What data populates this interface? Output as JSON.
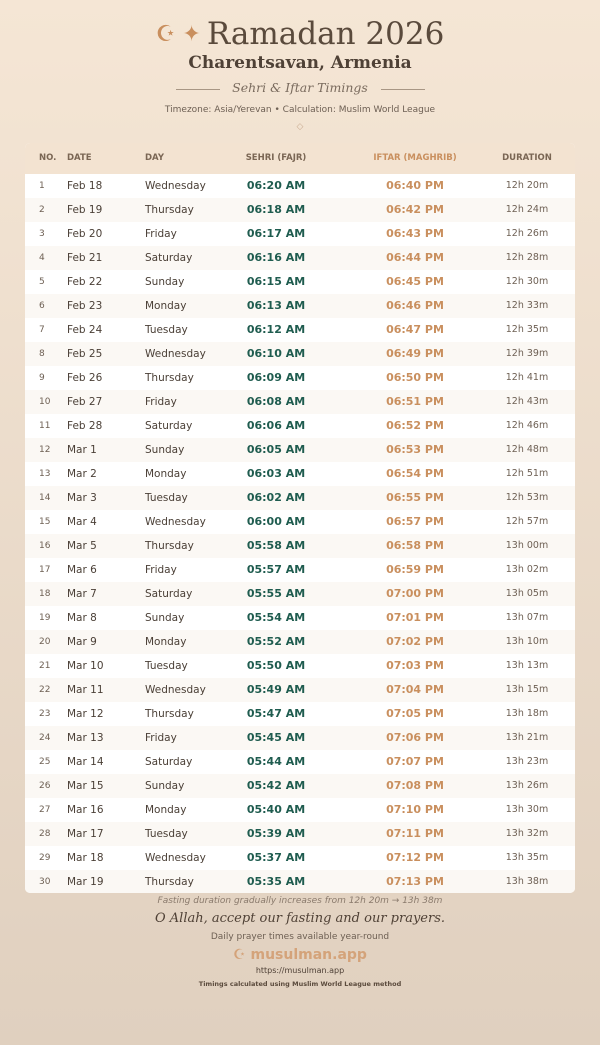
{
  "header": {
    "title": "Ramadan 2026",
    "icons": "☪ ✦",
    "city": "Charentsavan, Armenia",
    "subtitle": "Sehri & Iftar Timings",
    "info": "Timezone: Asia/Yerevan • Calculation: Muslim World League",
    "ornament": "◇"
  },
  "colors": {
    "sehri": "#1f5c4f",
    "iftar": "#c98f5e"
  },
  "table": {
    "headers": [
      "NO.",
      "DATE",
      "DAY",
      "SEHRI (FAJR)",
      "IFTAR (MAGHRIB)",
      "DURATION"
    ],
    "rows": [
      [
        "1",
        "Feb 18",
        "Wednesday",
        "06:20 AM",
        "06:40 PM",
        "12h 20m"
      ],
      [
        "2",
        "Feb 19",
        "Thursday",
        "06:18 AM",
        "06:42 PM",
        "12h 24m"
      ],
      [
        "3",
        "Feb 20",
        "Friday",
        "06:17 AM",
        "06:43 PM",
        "12h 26m"
      ],
      [
        "4",
        "Feb 21",
        "Saturday",
        "06:16 AM",
        "06:44 PM",
        "12h 28m"
      ],
      [
        "5",
        "Feb 22",
        "Sunday",
        "06:15 AM",
        "06:45 PM",
        "12h 30m"
      ],
      [
        "6",
        "Feb 23",
        "Monday",
        "06:13 AM",
        "06:46 PM",
        "12h 33m"
      ],
      [
        "7",
        "Feb 24",
        "Tuesday",
        "06:12 AM",
        "06:47 PM",
        "12h 35m"
      ],
      [
        "8",
        "Feb 25",
        "Wednesday",
        "06:10 AM",
        "06:49 PM",
        "12h 39m"
      ],
      [
        "9",
        "Feb 26",
        "Thursday",
        "06:09 AM",
        "06:50 PM",
        "12h 41m"
      ],
      [
        "10",
        "Feb 27",
        "Friday",
        "06:08 AM",
        "06:51 PM",
        "12h 43m"
      ],
      [
        "11",
        "Feb 28",
        "Saturday",
        "06:06 AM",
        "06:52 PM",
        "12h 46m"
      ],
      [
        "12",
        "Mar 1",
        "Sunday",
        "06:05 AM",
        "06:53 PM",
        "12h 48m"
      ],
      [
        "13",
        "Mar 2",
        "Monday",
        "06:03 AM",
        "06:54 PM",
        "12h 51m"
      ],
      [
        "14",
        "Mar 3",
        "Tuesday",
        "06:02 AM",
        "06:55 PM",
        "12h 53m"
      ],
      [
        "15",
        "Mar 4",
        "Wednesday",
        "06:00 AM",
        "06:57 PM",
        "12h 57m"
      ],
      [
        "16",
        "Mar 5",
        "Thursday",
        "05:58 AM",
        "06:58 PM",
        "13h 00m"
      ],
      [
        "17",
        "Mar 6",
        "Friday",
        "05:57 AM",
        "06:59 PM",
        "13h 02m"
      ],
      [
        "18",
        "Mar 7",
        "Saturday",
        "05:55 AM",
        "07:00 PM",
        "13h 05m"
      ],
      [
        "19",
        "Mar 8",
        "Sunday",
        "05:54 AM",
        "07:01 PM",
        "13h 07m"
      ],
      [
        "20",
        "Mar 9",
        "Monday",
        "05:52 AM",
        "07:02 PM",
        "13h 10m"
      ],
      [
        "21",
        "Mar 10",
        "Tuesday",
        "05:50 AM",
        "07:03 PM",
        "13h 13m"
      ],
      [
        "22",
        "Mar 11",
        "Wednesday",
        "05:49 AM",
        "07:04 PM",
        "13h 15m"
      ],
      [
        "23",
        "Mar 12",
        "Thursday",
        "05:47 AM",
        "07:05 PM",
        "13h 18m"
      ],
      [
        "24",
        "Mar 13",
        "Friday",
        "05:45 AM",
        "07:06 PM",
        "13h 21m"
      ],
      [
        "25",
        "Mar 14",
        "Saturday",
        "05:44 AM",
        "07:07 PM",
        "13h 23m"
      ],
      [
        "26",
        "Mar 15",
        "Sunday",
        "05:42 AM",
        "07:08 PM",
        "13h 26m"
      ],
      [
        "27",
        "Mar 16",
        "Monday",
        "05:40 AM",
        "07:10 PM",
        "13h 30m"
      ],
      [
        "28",
        "Mar 17",
        "Tuesday",
        "05:39 AM",
        "07:11 PM",
        "13h 32m"
      ],
      [
        "29",
        "Mar 18",
        "Wednesday",
        "05:37 AM",
        "07:12 PM",
        "13h 35m"
      ],
      [
        "30",
        "Mar 19",
        "Thursday",
        "05:35 AM",
        "07:13 PM",
        "13h 38m"
      ]
    ]
  },
  "footer": {
    "note": "Fasting duration gradually increases from 12h 20m → 13h 38m",
    "dua": "O Allah, accept our fasting and our prayers.",
    "daily": "Daily prayer times available year-round",
    "brand_icon": "☪",
    "brand": "musulman.app",
    "url": "https://musulman.app",
    "calc": "Timings calculated using Muslim World League method"
  }
}
